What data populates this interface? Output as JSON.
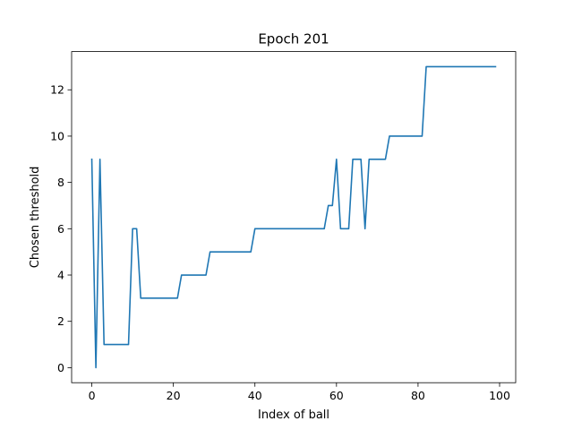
{
  "chart_data": {
    "type": "line",
    "title": "Epoch 201",
    "xlabel": "Index of ball",
    "ylabel": "Chosen threshold",
    "xlim": [
      -4.95,
      103.95
    ],
    "ylim": [
      -0.65,
      13.65
    ],
    "xticks": [
      0,
      20,
      40,
      60,
      80,
      100
    ],
    "yticks": [
      0,
      2,
      4,
      6,
      8,
      10,
      12
    ],
    "grid": false,
    "legend": "none",
    "series": [
      {
        "color": "#1f77b4",
        "points": [
          [
            0,
            9
          ],
          [
            1,
            0
          ],
          [
            2,
            9
          ],
          [
            3,
            1
          ],
          [
            9,
            1
          ],
          [
            10,
            6
          ],
          [
            11,
            6
          ],
          [
            12,
            3
          ],
          [
            21,
            3
          ],
          [
            22,
            4
          ],
          [
            28,
            4
          ],
          [
            29,
            5
          ],
          [
            39,
            5
          ],
          [
            40,
            6
          ],
          [
            57,
            6
          ],
          [
            58,
            7
          ],
          [
            59,
            7
          ],
          [
            60,
            9
          ],
          [
            61,
            6
          ],
          [
            63,
            6
          ],
          [
            64,
            9
          ],
          [
            66,
            9
          ],
          [
            67,
            6
          ],
          [
            68,
            9
          ],
          [
            72,
            9
          ],
          [
            73,
            10
          ],
          [
            81,
            10
          ],
          [
            82,
            13
          ],
          [
            99,
            13
          ]
        ]
      }
    ]
  }
}
